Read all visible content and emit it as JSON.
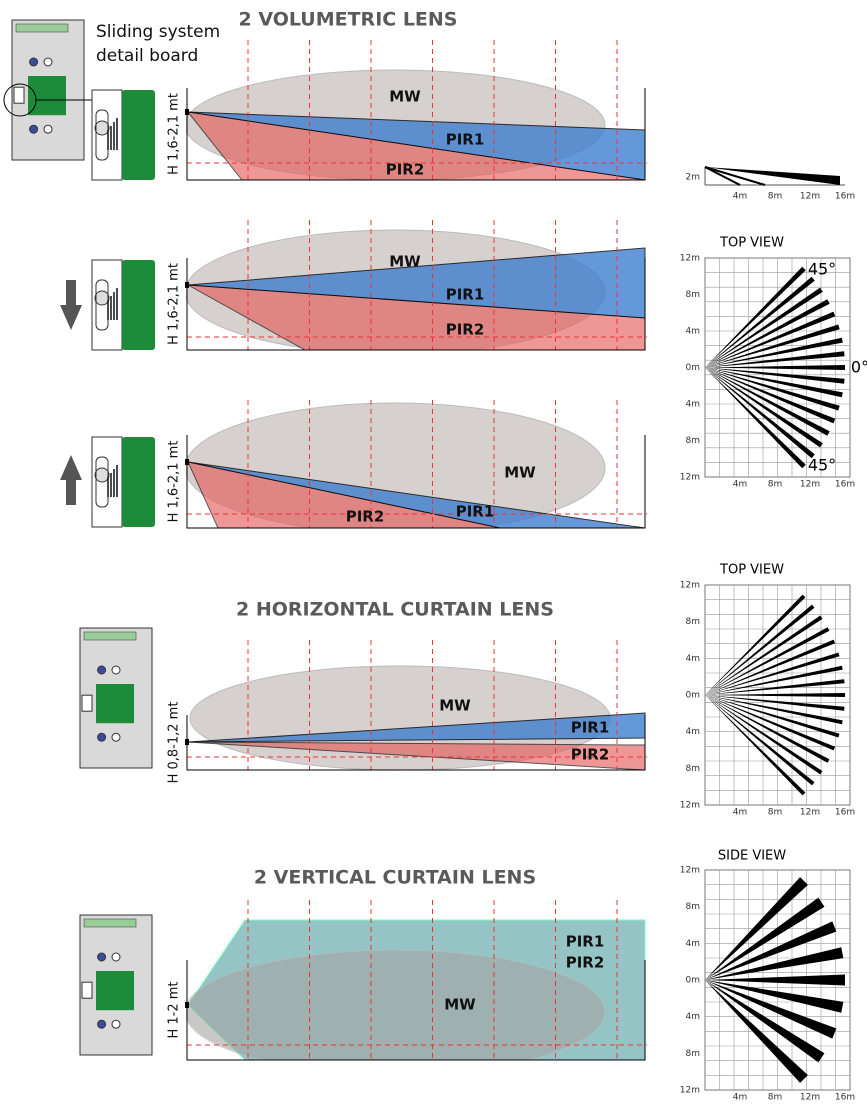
{
  "header": {
    "caption_line1": "Sliding system",
    "caption_line2": "detail board"
  },
  "sections": [
    {
      "title": "2 VOLUMETRIC LENS",
      "panels": [
        {
          "height_label": "H 1,6-2,1 mt",
          "mw": "MW",
          "pir1": "PIR1",
          "pir2": "PIR2"
        },
        {
          "height_label": "H 1,6-2,1 mt",
          "mw": "MW",
          "pir1": "PIR1",
          "pir2": "PIR2"
        },
        {
          "height_label": "H 1,6-2,1 mt",
          "mw": "MW",
          "pir1": "PIR1",
          "pir2": "PIR2"
        }
      ]
    },
    {
      "title": "2 HORIZONTAL CURTAIN LENS",
      "panels": [
        {
          "height_label": "H 0,8-1,2 mt",
          "mw": "MW",
          "pir1": "PIR1",
          "pir2": "PIR2"
        }
      ]
    },
    {
      "title": "2 VERTICAL CURTAIN LENS",
      "panels": [
        {
          "height_label": "H 1-2 mt",
          "mw": "MW",
          "pir1": "PIR1",
          "pir2": "PIR2"
        }
      ]
    }
  ],
  "side_strip": {
    "y_label": "2m",
    "x_labels": [
      "4m",
      "8m",
      "12m",
      "16m"
    ]
  },
  "views": [
    {
      "title": "TOP VIEW",
      "y_labels": [
        "12m",
        "8m",
        "4m",
        "0m",
        "4m",
        "8m",
        "12m"
      ],
      "x_labels": [
        "4m",
        "8m",
        "12m",
        "16m"
      ],
      "angle_labels": [
        "45°",
        "0°",
        "45°"
      ]
    },
    {
      "title": "TOP VIEW",
      "y_labels": [
        "12m",
        "8m",
        "4m",
        "0m",
        "4m",
        "8m",
        "12m"
      ],
      "x_labels": [
        "4m",
        "8m",
        "12m",
        "16m"
      ]
    },
    {
      "title": "SIDE VIEW",
      "y_labels": [
        "12m",
        "8m",
        "4m",
        "0m",
        "4m",
        "8m",
        "12m"
      ],
      "x_labels": [
        "4m",
        "8m",
        "12m",
        "16m"
      ]
    }
  ]
}
